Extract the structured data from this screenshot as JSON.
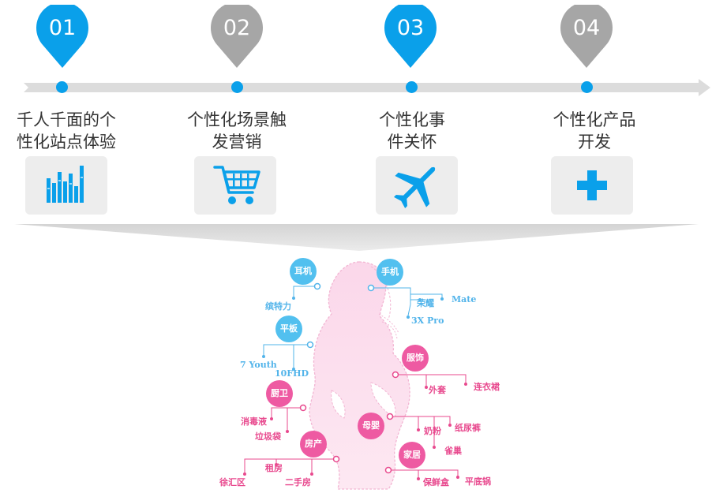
{
  "stages": [
    {
      "num": "01",
      "label": "千人千面的个\n性化站点体验",
      "icon": "bar-chart-icon",
      "pin_color": "#0aa0ea"
    },
    {
      "num": "02",
      "label": "个性化场景触\n发营销",
      "icon": "shopping-cart-icon",
      "pin_color": "#a6a6a6"
    },
    {
      "num": "03",
      "label": "个性化事\n件关怀",
      "icon": "airplane-icon",
      "pin_color": "#0aa0ea"
    },
    {
      "num": "04",
      "label": "个性化产品\n开发",
      "icon": "plus-icon",
      "pin_color": "#a6a6a6"
    }
  ],
  "colors": {
    "accent": "#0aa0ea",
    "gray": "#a6a6a6",
    "pink": "#ee5aa2",
    "light_blue": "#52c0ef"
  },
  "figure": {
    "categories": [
      {
        "id": "earphone",
        "label": "耳机",
        "color": "blue",
        "items": [
          "缤特力"
        ]
      },
      {
        "id": "phone",
        "label": "手机",
        "color": "blue",
        "items": [
          "荣耀",
          "Mate",
          "3X Pro"
        ]
      },
      {
        "id": "tablet",
        "label": "平板",
        "color": "blue",
        "items": [
          "7 Youth",
          "10FHD"
        ]
      },
      {
        "id": "clothing",
        "label": "服饰",
        "color": "pink",
        "items": [
          "外套",
          "连衣裙"
        ]
      },
      {
        "id": "kitchen",
        "label": "厨卫",
        "color": "pink",
        "items": [
          "消毒液",
          "垃圾袋"
        ]
      },
      {
        "id": "baby",
        "label": "母婴",
        "color": "pink",
        "items": [
          "奶粉",
          "纸尿裤",
          "雀巢"
        ]
      },
      {
        "id": "realestate",
        "label": "房产",
        "color": "pink",
        "items": [
          "租房",
          "徐汇区",
          "二手房"
        ]
      },
      {
        "id": "home",
        "label": "家居",
        "color": "pink",
        "items": [
          "保鲜盒",
          "平底锅"
        ]
      }
    ]
  }
}
